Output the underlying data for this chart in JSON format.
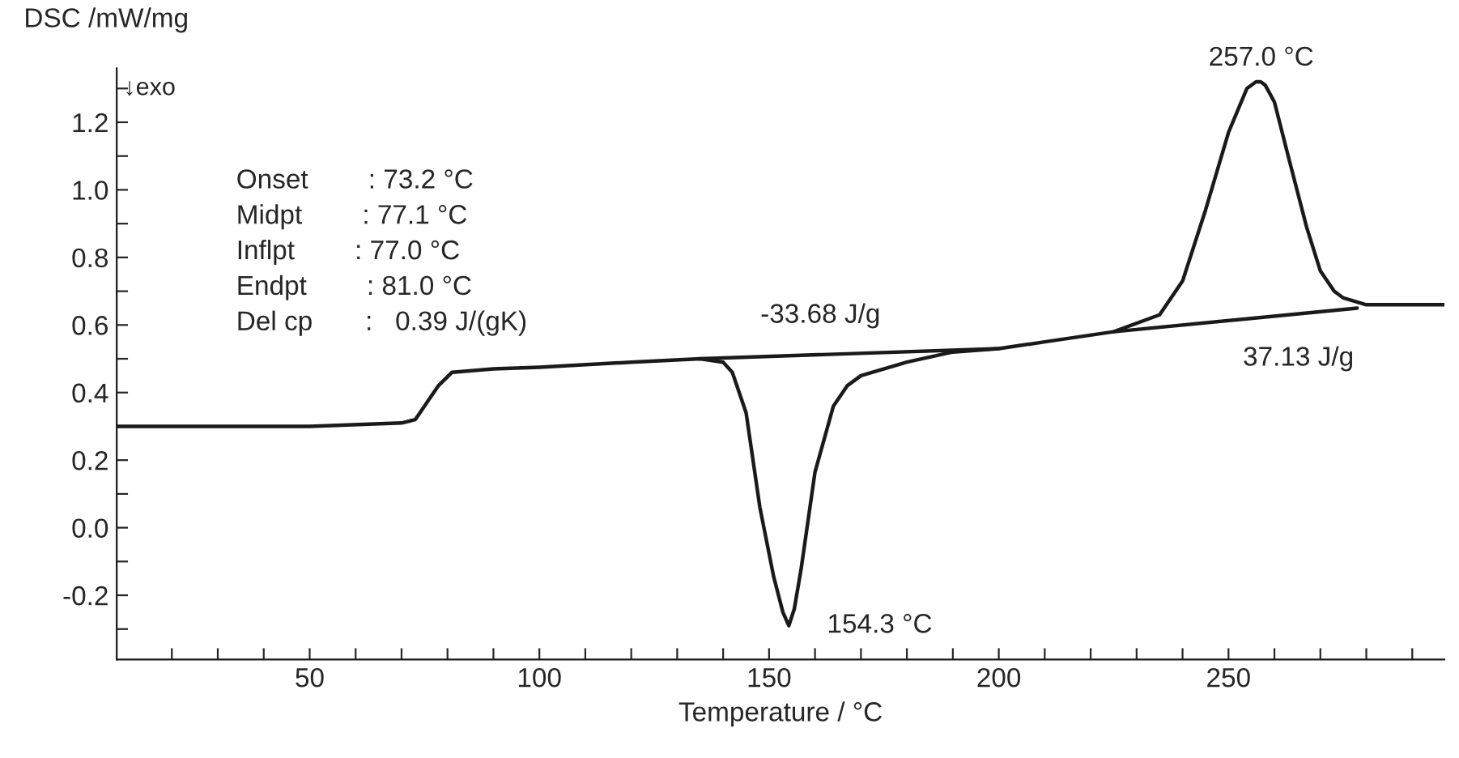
{
  "chart_data": {
    "type": "line",
    "xlabel": "Temperature / °C",
    "ylabel": "DSC /mW/mg",
    "series": [
      {
        "color": "#1a1a1a",
        "x": [
          8,
          30,
          50,
          70,
          73,
          76,
          78,
          81,
          90,
          100,
          120,
          135,
          140,
          142,
          145,
          148,
          151,
          153,
          154.3,
          155.5,
          157,
          160,
          164,
          167,
          170,
          180,
          190,
          200,
          210,
          225,
          235,
          240,
          245,
          250,
          254,
          256,
          257,
          258,
          260,
          263,
          267,
          270,
          273,
          275,
          280,
          290,
          297
        ],
        "values": [
          0.3,
          0.3,
          0.3,
          0.31,
          0.32,
          0.38,
          0.42,
          0.46,
          0.47,
          0.475,
          0.49,
          0.5,
          0.49,
          0.46,
          0.34,
          0.06,
          -0.145,
          -0.25,
          -0.29,
          -0.24,
          -0.12,
          0.165,
          0.36,
          0.42,
          0.45,
          0.49,
          0.52,
          0.53,
          0.55,
          0.58,
          0.63,
          0.73,
          0.94,
          1.17,
          1.3,
          1.32,
          1.32,
          1.31,
          1.26,
          1.1,
          0.89,
          0.76,
          0.7,
          0.68,
          0.66,
          0.66,
          0.66
        ]
      },
      {
        "color": "#1a1a1a",
        "x": [
          135,
          200
        ],
        "values": [
          0.5,
          0.53
        ]
      },
      {
        "color": "#1a1a1a",
        "x": [
          225,
          278
        ],
        "values": [
          0.58,
          0.65
        ]
      }
    ],
    "xlim": [
      8,
      297
    ],
    "ylim": [
      -0.39,
      1.36
    ],
    "xticks": [
      {
        "value": 20,
        "label": null
      },
      {
        "value": 30,
        "label": null
      },
      {
        "value": 40,
        "label": null
      },
      50,
      {
        "value": 60,
        "label": null
      },
      {
        "value": 70,
        "label": null
      },
      {
        "value": 80,
        "label": null
      },
      {
        "value": 90,
        "label": null
      },
      100,
      {
        "value": 110,
        "label": null
      },
      {
        "value": 120,
        "label": null
      },
      {
        "value": 130,
        "label": null
      },
      {
        "value": 140,
        "label": null
      },
      150,
      {
        "value": 160,
        "label": null
      },
      {
        "value": 170,
        "label": null
      },
      {
        "value": 180,
        "label": null
      },
      {
        "value": 190,
        "label": null
      },
      200,
      {
        "value": 210,
        "label": null
      },
      {
        "value": 220,
        "label": null
      },
      {
        "value": 230,
        "label": null
      },
      {
        "value": 240,
        "label": null
      },
      250,
      {
        "value": 260,
        "label": null
      },
      {
        "value": 270,
        "label": null
      },
      {
        "value": 280,
        "label": null
      },
      {
        "value": 290,
        "label": null
      }
    ],
    "yticks": [
      {
        "value": -0.3,
        "label": null
      },
      {
        "value": -0.2,
        "label": "-0.2"
      },
      {
        "value": -0.1,
        "label": null
      },
      {
        "value": 0.0,
        "label": "0.0"
      },
      {
        "value": 0.1,
        "label": null
      },
      {
        "value": 0.2,
        "label": "0.2"
      },
      {
        "value": 0.3,
        "label": null
      },
      {
        "value": 0.4,
        "label": "0.4"
      },
      {
        "value": 0.5,
        "label": null
      },
      {
        "value": 0.6,
        "label": "0.6"
      },
      {
        "value": 0.7,
        "label": null
      },
      {
        "value": 0.8,
        "label": "0.8"
      },
      {
        "value": 0.9,
        "label": null
      },
      {
        "value": 1.0,
        "label": "1.0"
      },
      {
        "value": 1.1,
        "label": null
      },
      {
        "value": 1.2,
        "label": "1.2"
      },
      {
        "value": 1.3,
        "label": null
      }
    ],
    "grid": false,
    "marker": "none",
    "line_style": "solid",
    "legend": false,
    "annotations": [
      "↓exo",
      "Onset        : 73.2 °C",
      "Midpt        : 77.1 °C",
      "Inflpt        : 77.0 °C",
      "Endpt        : 81.0 °C",
      "Del cp       :   0.39 J/(gK)",
      "257.0 °C",
      "154.3 °C",
      "-33.68 J/g",
      "37.13 J/g"
    ]
  }
}
